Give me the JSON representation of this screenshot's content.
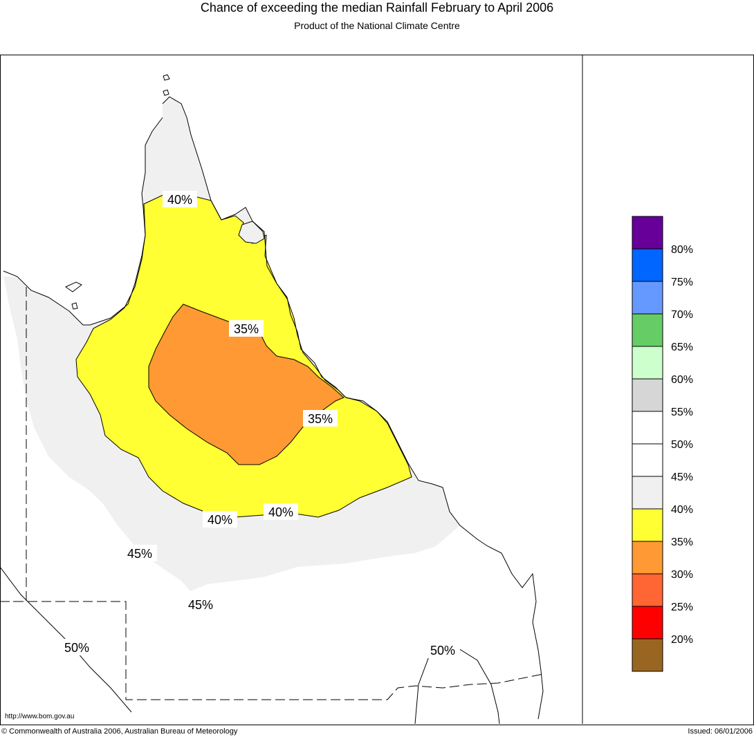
{
  "header": {
    "title": "Chance of exceeding the median Rainfall February to April 2006",
    "subtitle": "Product of the National Climate Centre"
  },
  "map": {
    "contour_labels": [
      "40%",
      "35%",
      "35%",
      "40%",
      "40%",
      "45%",
      "45%",
      "50%",
      "50%"
    ],
    "region_colors": {
      "below_35": "#ff9933",
      "35_40": "#ffff33",
      "40_45": "#f0f0f0",
      "above_45": "#ffffff"
    }
  },
  "legend": {
    "labels": [
      "80%",
      "75%",
      "70%",
      "65%",
      "60%",
      "55%",
      "50%",
      "45%",
      "40%",
      "35%",
      "30%",
      "25%",
      "20%"
    ],
    "swatches": [
      "#660099",
      "#0066ff",
      "#6699ff",
      "#66cc66",
      "#ccffcc",
      "#d6d6d6",
      "#ffffff",
      "#ffffff",
      "#f0f0f0",
      "#ffff33",
      "#ff9933",
      "#ff6633",
      "#ff0000",
      "#996622"
    ]
  },
  "footer": {
    "url": "http://www.bom.gov.au",
    "copyright": "© Commonwealth of Australia 2006, Australian Bureau of Meteorology",
    "issued": "Issued: 06/01/2006"
  }
}
